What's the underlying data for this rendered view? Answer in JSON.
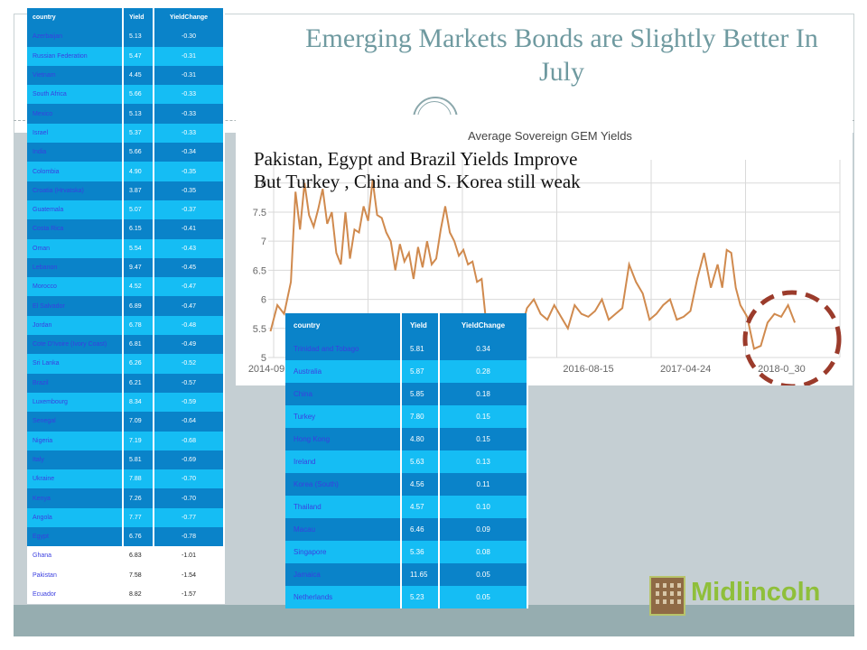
{
  "title": "Emerging Markets Bonds are Slightly Better In July",
  "overlay": {
    "line1": "Pakistan, Egypt and Brazil Yields Improve",
    "line2": "But Turkey , China and S. Korea still weak"
  },
  "left_table": {
    "headers": [
      "country",
      "Yield",
      "YieldChange"
    ],
    "rows": [
      [
        "Azerbaijan",
        "5.13",
        "-0.30"
      ],
      [
        "Russian Federation",
        "5.47",
        "-0.31"
      ],
      [
        "Vietnam",
        "4.45",
        "-0.31"
      ],
      [
        "South Africa",
        "5.66",
        "-0.33"
      ],
      [
        "Mexico",
        "5.13",
        "-0.33"
      ],
      [
        "Israel",
        "5.37",
        "-0.33"
      ],
      [
        "India",
        "5.66",
        "-0.34"
      ],
      [
        "Colombia",
        "4.90",
        "-0.35"
      ],
      [
        "Croatia (Hrvatska)",
        "3.87",
        "-0.35"
      ],
      [
        "Guatemala",
        "5.07",
        "-0.37"
      ],
      [
        "Costa Rica",
        "6.15",
        "-0.41"
      ],
      [
        "Oman",
        "5.54",
        "-0.43"
      ],
      [
        "Lebanon",
        "9.47",
        "-0.45"
      ],
      [
        "Morocco",
        "4.52",
        "-0.47"
      ],
      [
        "El Salvador",
        "6.89",
        "-0.47"
      ],
      [
        "Jordan",
        "6.78",
        "-0.48"
      ],
      [
        "Cote D'Ivoire (Ivory Coast)",
        "6.81",
        "-0.49"
      ],
      [
        "Sri Lanka",
        "6.26",
        "-0.52"
      ],
      [
        "Brazil",
        "6.21",
        "-0.57"
      ],
      [
        "Luxembourg",
        "8.34",
        "-0.59"
      ],
      [
        "Senegal",
        "7.09",
        "-0.64"
      ],
      [
        "Nigeria",
        "7.19",
        "-0.68"
      ],
      [
        "Italy",
        "5.81",
        "-0.69"
      ],
      [
        "Ukraine",
        "7.88",
        "-0.70"
      ],
      [
        "Kenya",
        "7.26",
        "-0.70"
      ],
      [
        "Angola",
        "7.77",
        "-0.77"
      ],
      [
        "Egypt",
        "6.76",
        "-0.78"
      ],
      [
        "Ghana",
        "6.83",
        "-1.01"
      ],
      [
        "Pakistan",
        "7.58",
        "-1.54"
      ],
      [
        "Ecuador",
        "8.82",
        "-1.57"
      ]
    ]
  },
  "right_table": {
    "headers": [
      "country",
      "Yield",
      "YieldChange"
    ],
    "rows": [
      [
        "Trinidad and Tobago",
        "5.81",
        "0.34"
      ],
      [
        "Australia",
        "5.87",
        "0.28"
      ],
      [
        "China",
        "5.85",
        "0.18"
      ],
      [
        "Turkey",
        "7.80",
        "0.15"
      ],
      [
        "Hong Kong",
        "4.80",
        "0.15"
      ],
      [
        "Ireland",
        "5.63",
        "0.13"
      ],
      [
        "Korea (South)",
        "4.56",
        "0.11"
      ],
      [
        "Thailand",
        "4.57",
        "0.10"
      ],
      [
        "Macau",
        "6.46",
        "0.09"
      ],
      [
        "Singapore",
        "5.36",
        "0.08"
      ],
      [
        "Jamaica",
        "11.65",
        "0.05"
      ],
      [
        "Netherlands",
        "5.23",
        "0.05"
      ]
    ]
  },
  "logo": {
    "text": "Midlincoln"
  },
  "colors": {
    "line": "#d08a4e",
    "highlight_circle": "#9b3b2b",
    "table_dark": "#0a83c9",
    "table_light": "#15bdf4",
    "country_text": "#3b3fe0",
    "title": "#6f9aa0",
    "logo_green": "#8fbf3a"
  },
  "chart_data": {
    "type": "line",
    "title": "Average Sovereign GEM Yields",
    "xlabel": "",
    "ylabel": "",
    "x_tick_labels": [
      "2014-09",
      "2016-08-15",
      "2017-04-24",
      "2018-0_30"
    ],
    "y_ticks": [
      5,
      5.5,
      6,
      6.5,
      7,
      7.5,
      8
    ],
    "y_tick_labels": [
      "5",
      "5.5",
      "6",
      "6.5",
      "7",
      "7.5",
      "8"
    ],
    "ylim": [
      5,
      8.4
    ],
    "xlim": [
      "2014-09-01",
      "2019-06-30"
    ],
    "grid": true,
    "series": [
      {
        "x": [
          "2014-09-08",
          "2014-09-29",
          "2014-10-20",
          "2014-11-10",
          "2014-11-24",
          "2014-12-08",
          "2014-12-22",
          "2015-01-05",
          "2015-01-19",
          "2015-02-02",
          "2015-02-16",
          "2015-03-02",
          "2015-03-16",
          "2015-03-30",
          "2015-04-13",
          "2015-04-27",
          "2015-05-11",
          "2015-05-25",
          "2015-06-08",
          "2015-06-22",
          "2015-07-06",
          "2015-07-20",
          "2015-08-03",
          "2015-08-17",
          "2015-08-31",
          "2015-09-14",
          "2015-09-28",
          "2015-10-12",
          "2015-10-26",
          "2015-11-09",
          "2015-11-23",
          "2015-12-07",
          "2015-12-21",
          "2016-01-04",
          "2016-01-18",
          "2016-02-01",
          "2016-02-15",
          "2016-02-29",
          "2016-03-14",
          "2016-03-28",
          "2016-04-11",
          "2016-04-25",
          "2016-05-09",
          "2016-05-23",
          "2016-06-06",
          "2016-06-20",
          "2016-07-04",
          "2016-07-18",
          "2016-08-01",
          "2016-08-15",
          "2016-09-05",
          "2016-09-26",
          "2016-10-17",
          "2016-11-07",
          "2016-11-28",
          "2016-12-19",
          "2017-01-09",
          "2017-01-30",
          "2017-02-20",
          "2017-03-13",
          "2017-04-03",
          "2017-04-24",
          "2017-05-15",
          "2017-06-05",
          "2017-06-26",
          "2017-07-17",
          "2017-08-07",
          "2017-08-28",
          "2017-09-18",
          "2017-10-09",
          "2017-10-30",
          "2017-11-20",
          "2017-12-11",
          "2018-01-01",
          "2018-01-22",
          "2018-02-12",
          "2018-03-05",
          "2018-03-26",
          "2018-04-16",
          "2018-05-07",
          "2018-05-28",
          "2018-06-18",
          "2018-07-02",
          "2018-07-16",
          "2018-07-30",
          "2018-08-13",
          "2018-08-27",
          "2018-09-17",
          "2018-10-08",
          "2018-10-29",
          "2018-11-19",
          "2018-12-10",
          "2018-12-31",
          "2019-01-21",
          "2019-02-11"
        ],
        "values": [
          5.45,
          5.9,
          5.75,
          6.3,
          7.85,
          7.2,
          8.0,
          7.45,
          7.25,
          7.55,
          7.9,
          7.3,
          7.5,
          6.8,
          6.6,
          7.5,
          6.7,
          7.2,
          7.15,
          7.6,
          7.35,
          8.05,
          7.45,
          7.4,
          7.15,
          7.0,
          6.5,
          6.95,
          6.65,
          6.8,
          6.35,
          6.9,
          6.55,
          7.0,
          6.6,
          6.7,
          7.2,
          7.6,
          7.15,
          7.0,
          6.75,
          6.85,
          6.6,
          6.65,
          6.3,
          6.35,
          5.6,
          5.45,
          5.65,
          5.55,
          5.7,
          5.5,
          5.4,
          5.85,
          6.0,
          5.75,
          5.65,
          5.9,
          5.7,
          5.5,
          5.9,
          5.75,
          5.7,
          5.8,
          6.0,
          5.65,
          5.75,
          5.85,
          6.6,
          6.3,
          6.1,
          5.65,
          5.75,
          5.9,
          6.0,
          5.65,
          5.7,
          5.8,
          6.35,
          6.8,
          6.2,
          6.6,
          6.2,
          6.85,
          6.8,
          6.2,
          5.9,
          5.7,
          5.15,
          5.2,
          5.6,
          5.75,
          5.7,
          5.9,
          5.6
        ]
      }
    ]
  }
}
